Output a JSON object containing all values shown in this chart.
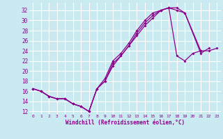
{
  "xlabel": "Windchill (Refroidissement éolien,°C)",
  "bg_color": "#c8eaf0",
  "line_color": "#8b008b",
  "grid_color": "#ffffff",
  "xlim": [
    -0.5,
    23.5
  ],
  "ylim": [
    11.5,
    33.5
  ],
  "yticks": [
    12,
    14,
    16,
    18,
    20,
    22,
    24,
    26,
    28,
    30,
    32
  ],
  "xticks": [
    0,
    1,
    2,
    3,
    4,
    5,
    6,
    7,
    8,
    9,
    10,
    11,
    12,
    13,
    14,
    15,
    16,
    17,
    18,
    19,
    20,
    21,
    22,
    23
  ],
  "series": [
    {
      "x": [
        0,
        1,
        2,
        3,
        4,
        5,
        6,
        7,
        8,
        9,
        10,
        11,
        12,
        13,
        14,
        15,
        16,
        17,
        18,
        19,
        21,
        22
      ],
      "y": [
        16.5,
        16.0,
        15.0,
        14.5,
        14.5,
        13.5,
        13.0,
        12.0,
        16.5,
        18.5,
        22.0,
        23.5,
        25.5,
        28.0,
        30.0,
        31.5,
        32.0,
        32.5,
        32.0,
        31.5,
        23.5,
        24.5
      ]
    },
    {
      "x": [
        0,
        1,
        2,
        3,
        4,
        5,
        6,
        7,
        8,
        9,
        10,
        11,
        12,
        13,
        14,
        15,
        16,
        17,
        18,
        19,
        21
      ],
      "y": [
        16.5,
        16.0,
        15.0,
        14.5,
        14.5,
        13.5,
        13.0,
        12.0,
        16.5,
        18.0,
        21.0,
        23.0,
        25.0,
        27.0,
        29.0,
        30.5,
        32.0,
        32.5,
        32.5,
        31.5,
        24.0
      ]
    },
    {
      "x": [
        0,
        1,
        2,
        3,
        4,
        5,
        6,
        7,
        8,
        9,
        10,
        11,
        12,
        13,
        14,
        15,
        16,
        17,
        18,
        19,
        20,
        21,
        22,
        23
      ],
      "y": [
        16.5,
        16.0,
        15.0,
        14.5,
        14.5,
        13.5,
        13.0,
        12.0,
        16.5,
        18.0,
        21.5,
        23.0,
        25.0,
        27.5,
        29.5,
        31.0,
        32.0,
        32.5,
        23.0,
        22.0,
        23.5,
        24.0,
        24.0,
        24.5
      ]
    }
  ]
}
